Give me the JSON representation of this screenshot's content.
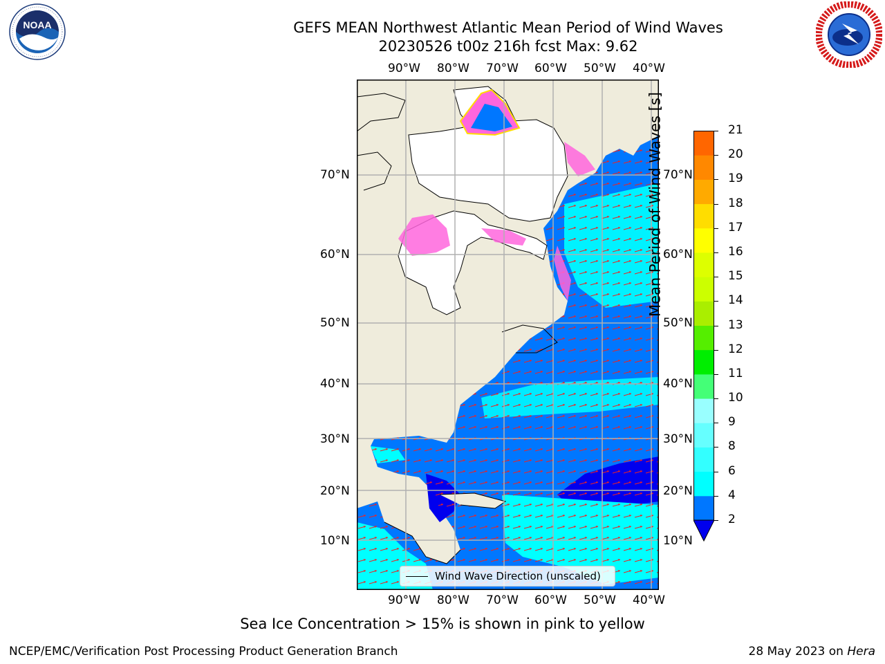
{
  "header": {
    "title_line1": "GEFS MEAN Northwest Atlantic Mean Period of Wind Waves",
    "title_line2": "20230526 t00z 216h fcst   Max: 9.62"
  },
  "logos": {
    "left": {
      "name": "NOAA",
      "ring_text": "NATIONAL OCEANIC AND ATMOSPHERIC ADMINISTRATION · U.S. DEPARTMENT OF COMMERCE"
    },
    "right": {
      "name": "National Weather Service",
      "ring_text": "NATIONAL WEATHER SERVICE"
    }
  },
  "map": {
    "lon_labels": [
      "90°W",
      "80°W",
      "70°W",
      "60°W",
      "50°W",
      "40°W"
    ],
    "lat_labels": [
      "70°N",
      "60°N",
      "50°N",
      "40°N",
      "30°N",
      "20°N",
      "10°N"
    ],
    "legend_label": "Wind Wave Direction (unscaled)",
    "colors": {
      "land": "#efecdc",
      "ocean_low": "#0000ee",
      "ocean_2_4": "#0077ff",
      "ocean_4_6": "#00ffff",
      "arrows": "#ee2222",
      "ice": "#ff66dd"
    }
  },
  "colorbar": {
    "label": "Mean Period of Wind Waves [s]",
    "ticks": [
      "2",
      "4",
      "6",
      "8",
      "9",
      "10",
      "11",
      "12",
      "13",
      "14",
      "15",
      "16",
      "17",
      "18",
      "19",
      "20",
      "21"
    ],
    "colors": [
      "#0077ff",
      "#00ffff",
      "#33ffff",
      "#66ffff",
      "#99ffff",
      "#44ff77",
      "#00ee00",
      "#55ee00",
      "#aaee00",
      "#ccff00",
      "#ddff00",
      "#ffff00",
      "#ffdd00",
      "#ffaa00",
      "#ff8800",
      "#ff6600",
      "#ff3300",
      "#ff0000"
    ],
    "under_color": "#0000ee"
  },
  "footer": {
    "note": "Sea Ice Concentration > 15% is shown in pink to yellow",
    "left": "NCEP/EMC/Verification Post Processing Product Generation Branch",
    "right_date": "28 May 2023 on ",
    "right_machine": "Hera"
  }
}
